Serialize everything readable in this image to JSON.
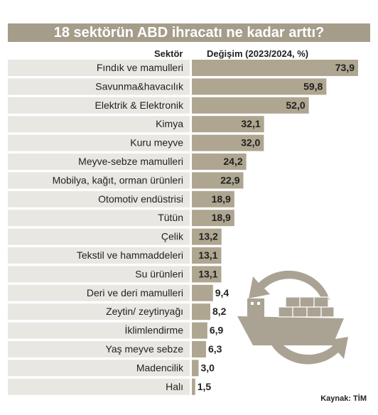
{
  "title": "18 sektörün ABD ihracatı ne kadar arttı?",
  "headers": {
    "sector": "Sektör",
    "change": "Değişim (2023/2024, %)"
  },
  "source_label": "Kaynak:",
  "source_value": "TİM",
  "colors": {
    "title_bg": "#a59d8a",
    "bar": "#aea690",
    "row_band": "#e9e7e2",
    "divider": "#ffffff",
    "graphic": "#aaa393"
  },
  "chart_data": {
    "type": "bar",
    "orientation": "horizontal",
    "title": "18 sektörün ABD ihracatı ne kadar arttı?",
    "xlabel": "Değişim (2023/2024, %)",
    "ylabel": "Sektör",
    "xlim": [
      0,
      73.9
    ],
    "grid": false,
    "legend": "none",
    "decimal_separator": ",",
    "categories": [
      "Fındık ve mamulleri",
      "Savunma&havacılık",
      "Elektrik & Elektronik",
      "Kimya",
      "Kuru meyve",
      "Meyve-sebze mamulleri",
      "Mobilya, kağıt, orman ürünleri",
      "Otomotiv endüstrisi",
      "Tütün",
      "Çelik",
      "Tekstil ve hammaddeleri",
      "Su ürünleri",
      "Deri ve deri mamulleri",
      "Zeytin/ zeytinyağı",
      "İklimlendirme",
      "Yaş meyve sebze",
      "Madencilik",
      "Halı"
    ],
    "values": [
      73.9,
      59.8,
      52.0,
      32.1,
      32.0,
      24.2,
      22.9,
      18.9,
      18.9,
      13.2,
      13.1,
      13.1,
      9.4,
      8.2,
      6.9,
      6.3,
      3.0,
      1.5
    ],
    "value_labels": [
      "73,9",
      "59,8",
      "52,0",
      "32,1",
      "32,0",
      "24,2",
      "22,9",
      "18,9",
      "18,9",
      "13,2",
      "13,1",
      "13,1",
      "9,4",
      "8,2",
      "6,9",
      "6,3",
      "3,0",
      "1,5"
    ]
  }
}
